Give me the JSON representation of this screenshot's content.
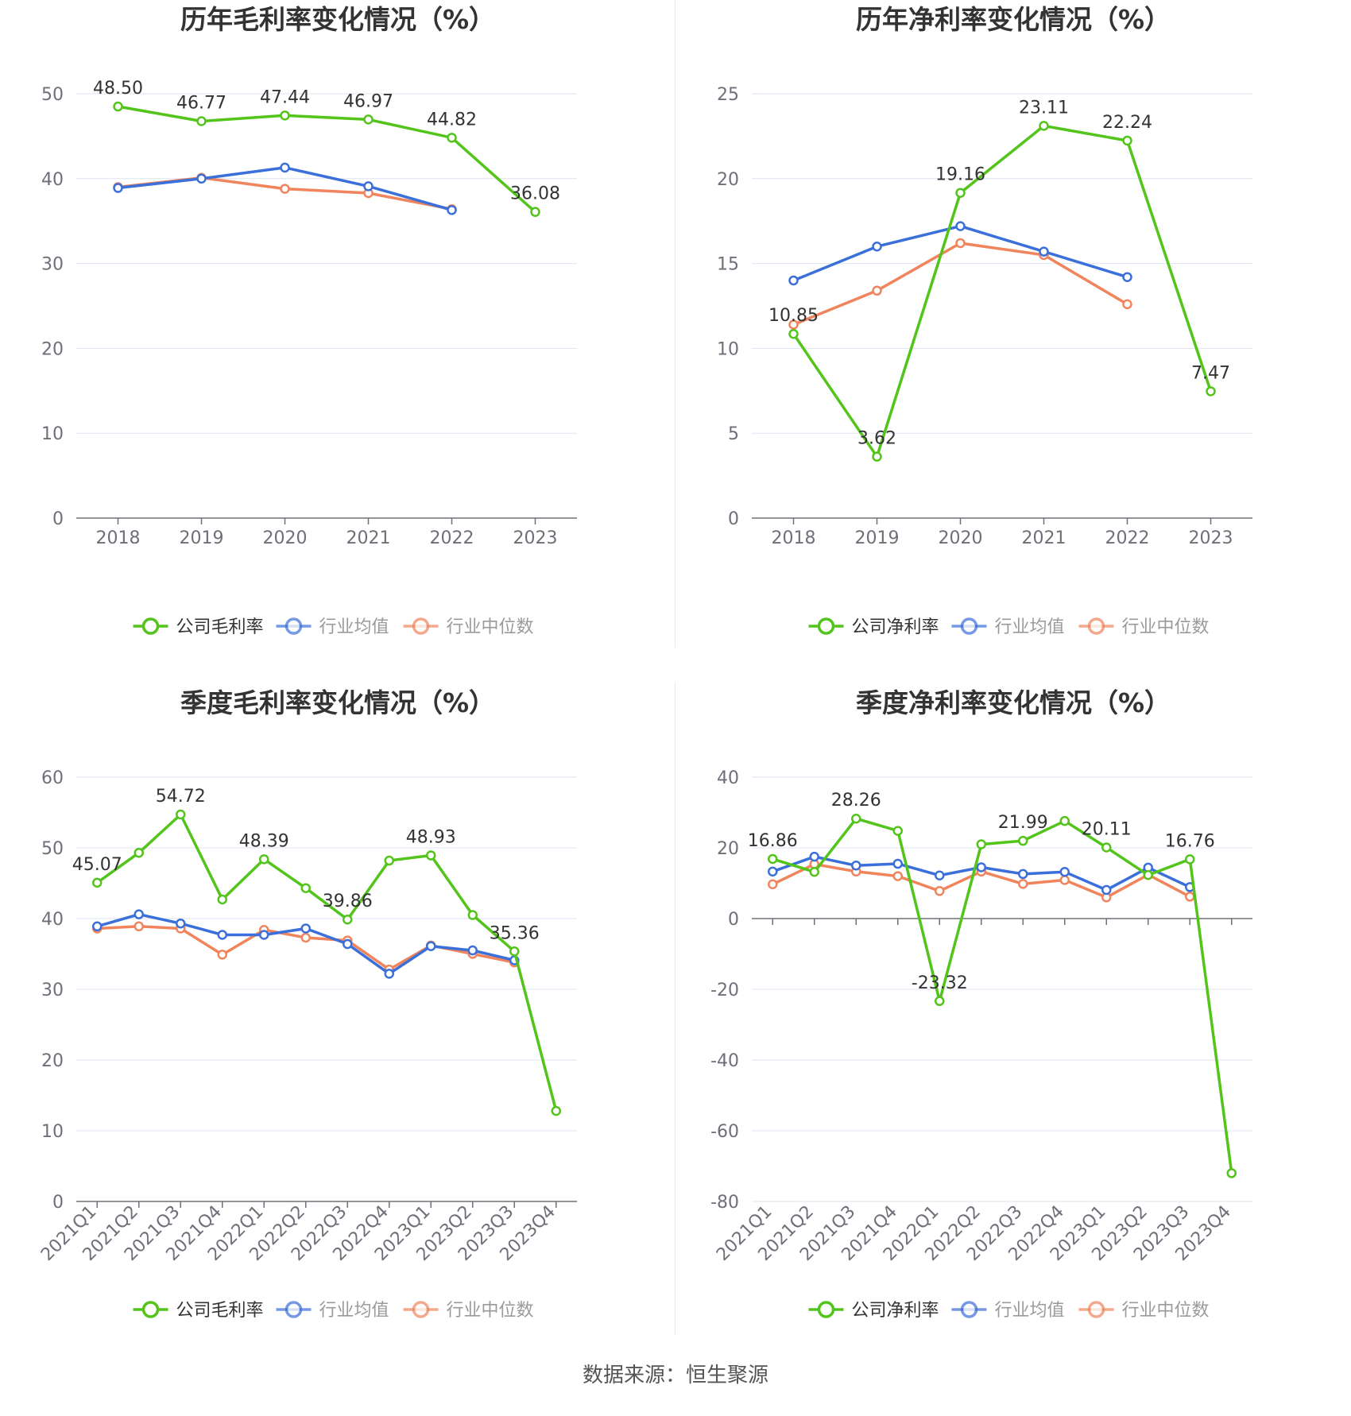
{
  "source_label": "数据来源：恒生聚源",
  "colors": {
    "company": "#52c41a",
    "avg": "#3b6fd9",
    "median": "#f0845c",
    "grid": "#dde3f0",
    "axis": "#6e7079"
  },
  "legend_icon": "circle-line-icon",
  "chart_data": [
    {
      "type": "line",
      "title": "历年毛利率变化情况（%）",
      "categories": [
        "2018",
        "2019",
        "2020",
        "2021",
        "2022",
        "2023"
      ],
      "ylim": [
        0,
        50
      ],
      "yticks": [
        0,
        10,
        20,
        30,
        40,
        50
      ],
      "grid": true,
      "legend_position": "bottom",
      "rotate_xlabels": false,
      "series": [
        {
          "name": "公司毛利率",
          "key": "company",
          "values": [
            48.5,
            46.77,
            47.44,
            46.97,
            44.82,
            36.08
          ],
          "labels": [
            "48.50",
            "46.77",
            "47.44",
            "46.97",
            "44.82",
            "36.08"
          ]
        },
        {
          "name": "行业均值",
          "key": "avg",
          "values": [
            38.9,
            40.0,
            41.3,
            39.1,
            36.3,
            null
          ]
        },
        {
          "name": "行业中位数",
          "key": "median",
          "values": [
            39.0,
            40.1,
            38.8,
            38.3,
            36.4,
            null
          ]
        }
      ]
    },
    {
      "type": "line",
      "title": "历年净利率变化情况（%）",
      "categories": [
        "2018",
        "2019",
        "2020",
        "2021",
        "2022",
        "2023"
      ],
      "ylim": [
        0,
        25
      ],
      "yticks": [
        0,
        5,
        10,
        15,
        20,
        25
      ],
      "grid": true,
      "legend_position": "bottom",
      "rotate_xlabels": false,
      "series": [
        {
          "name": "公司净利率",
          "key": "company",
          "values": [
            10.85,
            3.62,
            19.16,
            23.11,
            22.24,
            7.47
          ],
          "labels": [
            "10.85",
            "3.62",
            "19.16",
            "23.11",
            "22.24",
            "7.47"
          ]
        },
        {
          "name": "行业均值",
          "key": "avg",
          "values": [
            14.0,
            16.0,
            17.2,
            15.7,
            14.2,
            null
          ]
        },
        {
          "name": "行业中位数",
          "key": "median",
          "values": [
            11.4,
            13.4,
            16.2,
            15.5,
            12.6,
            null
          ]
        }
      ]
    },
    {
      "type": "line",
      "title": "季度毛利率变化情况（%）",
      "categories": [
        "2021Q1",
        "2021Q2",
        "2021Q3",
        "2021Q4",
        "2022Q1",
        "2022Q2",
        "2022Q3",
        "2022Q4",
        "2023Q1",
        "2023Q2",
        "2023Q3",
        "2023Q4"
      ],
      "ylim": [
        0,
        60
      ],
      "yticks": [
        0,
        10,
        20,
        30,
        40,
        50,
        60
      ],
      "grid": true,
      "legend_position": "bottom",
      "rotate_xlabels": true,
      "series": [
        {
          "name": "公司毛利率",
          "key": "company",
          "values": [
            45.07,
            49.3,
            54.72,
            42.7,
            48.39,
            44.3,
            39.86,
            48.2,
            48.93,
            40.5,
            35.36,
            12.8
          ],
          "labels": [
            "45.07",
            null,
            "54.72",
            null,
            "48.39",
            null,
            "39.86",
            null,
            "48.93",
            null,
            "35.36",
            null
          ]
        },
        {
          "name": "行业均值",
          "key": "avg",
          "values": [
            38.9,
            40.6,
            39.3,
            37.7,
            37.7,
            38.6,
            36.4,
            32.2,
            36.1,
            35.5,
            34.1,
            null
          ]
        },
        {
          "name": "行业中位数",
          "key": "median",
          "values": [
            38.6,
            38.9,
            38.6,
            34.9,
            38.4,
            37.3,
            36.9,
            32.8,
            36.2,
            35.0,
            33.8,
            null
          ]
        }
      ]
    },
    {
      "type": "line",
      "title": "季度净利率变化情况（%）",
      "categories": [
        "2021Q1",
        "2021Q2",
        "2021Q3",
        "2021Q4",
        "2022Q1",
        "2022Q2",
        "2022Q3",
        "2022Q4",
        "2023Q1",
        "2023Q2",
        "2023Q3",
        "2023Q4"
      ],
      "ylim": [
        -80,
        40
      ],
      "yticks": [
        -80,
        -60,
        -40,
        -20,
        0,
        20,
        40
      ],
      "grid": true,
      "legend_position": "bottom",
      "rotate_xlabels": true,
      "series": [
        {
          "name": "公司净利率",
          "key": "company",
          "values": [
            16.86,
            13.2,
            28.26,
            24.8,
            -23.32,
            21.0,
            21.99,
            27.6,
            20.11,
            12.3,
            16.76,
            -72.0
          ],
          "labels": [
            "16.86",
            null,
            "28.26",
            null,
            "-23.32",
            null,
            "21.99",
            null,
            "20.11",
            null,
            "16.76",
            null
          ]
        },
        {
          "name": "行业均值",
          "key": "avg",
          "values": [
            13.3,
            17.5,
            15.0,
            15.5,
            12.2,
            14.5,
            12.6,
            13.2,
            8.1,
            14.4,
            8.9,
            null
          ]
        },
        {
          "name": "行业中位数",
          "key": "median",
          "values": [
            9.7,
            15.4,
            13.3,
            12.0,
            7.8,
            13.3,
            9.8,
            10.9,
            6.0,
            12.4,
            6.2,
            null
          ]
        }
      ]
    }
  ]
}
